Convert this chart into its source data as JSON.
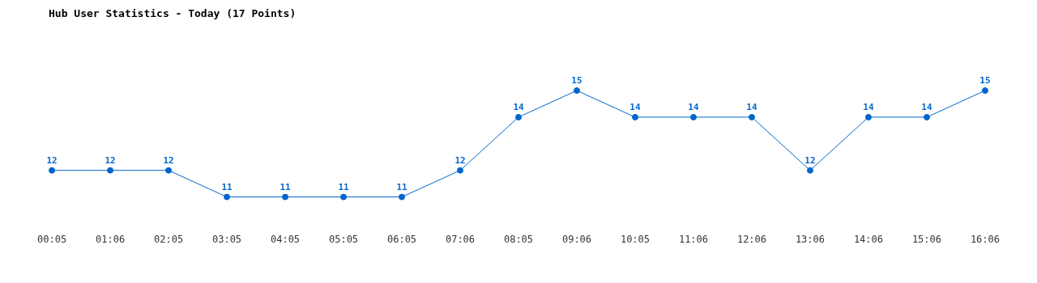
{
  "chart_data": {
    "type": "line",
    "title": "Hub User Statistics - Today (17 Points)",
    "categories": [
      "00:05",
      "01:06",
      "02:05",
      "03:05",
      "04:05",
      "05:05",
      "06:05",
      "07:06",
      "08:05",
      "09:06",
      "10:05",
      "11:06",
      "12:06",
      "13:06",
      "14:06",
      "15:06",
      "16:06"
    ],
    "series": [
      {
        "color": "#0066cc",
        "values": [
          12,
          12,
          12,
          11,
          11,
          11,
          11,
          12,
          14,
          15,
          14,
          14,
          14,
          12,
          14,
          14,
          15
        ]
      }
    ],
    "data_labels": true,
    "marker": "circle",
    "line_style": "solid",
    "grid": false,
    "legend": false
  }
}
